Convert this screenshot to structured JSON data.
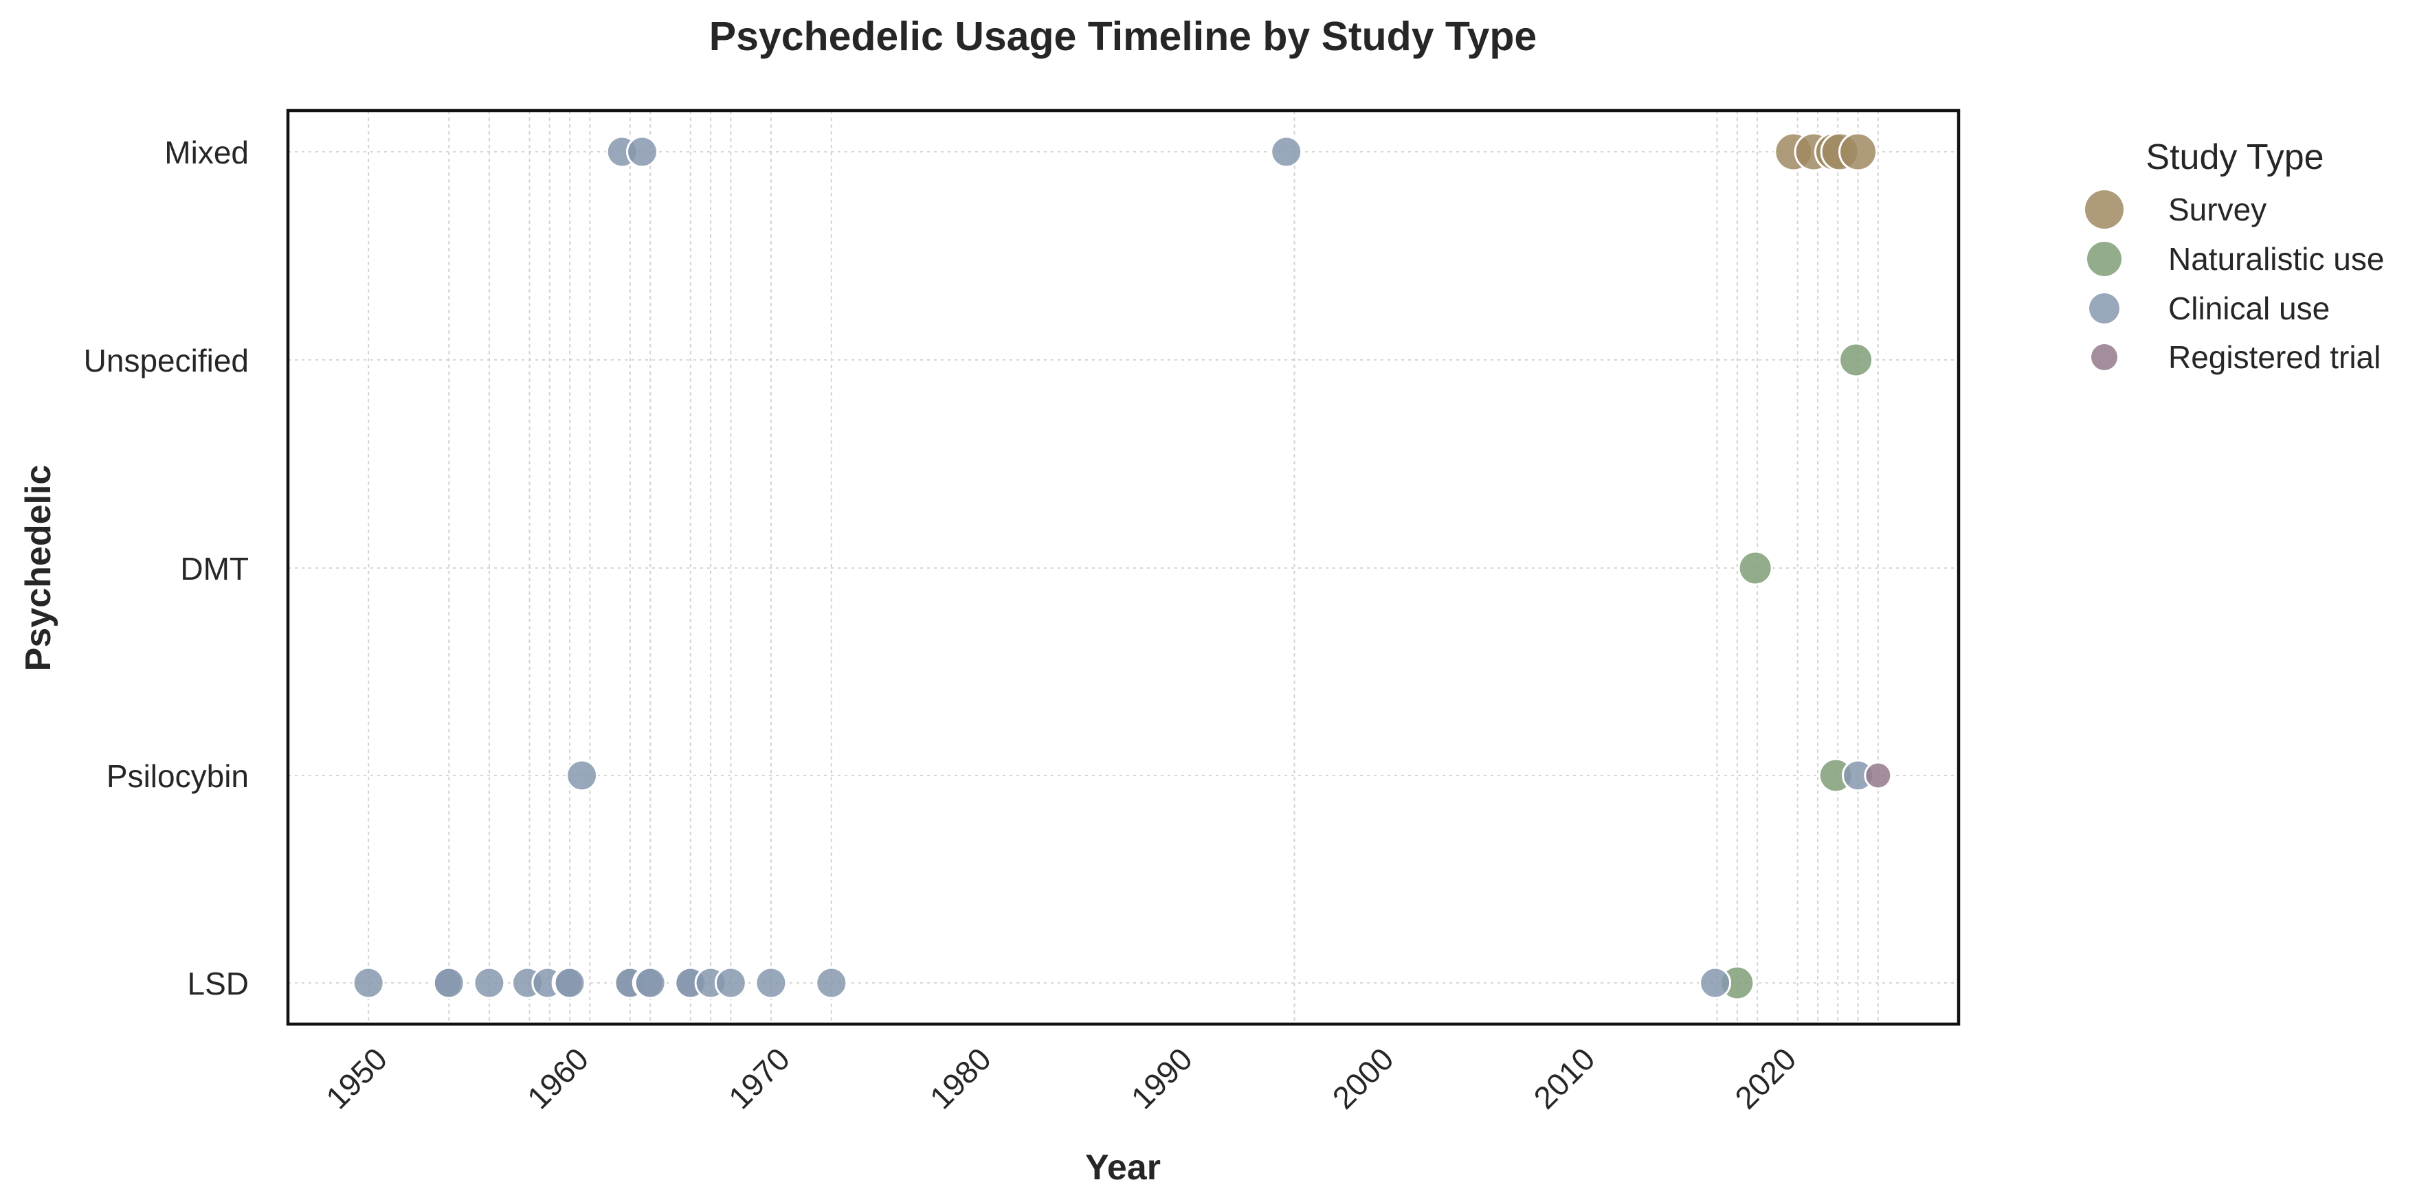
{
  "chart_data": {
    "type": "scatter",
    "title": "Psychedelic Usage Timeline by Study Type",
    "xlabel": "Year",
    "ylabel": "Psychedelic",
    "xlim": [
      1946,
      2029
    ],
    "x_ticks": [
      "1950",
      "1960",
      "1970",
      "1980",
      "1990",
      "2000",
      "2010",
      "2020"
    ],
    "categories": [
      "LSD",
      "Psilocybin",
      "DMT",
      "Unspecified",
      "Mixed"
    ],
    "grid": true,
    "legend": {
      "title": "Study Type",
      "placement": "outside-top-right",
      "entries": [
        "Survey",
        "Naturalistic use",
        "Clinical use",
        "Registered trial"
      ]
    },
    "series": [
      {
        "name": "Survey",
        "color": "#a08a62",
        "points": [
          {
            "x": 2020.8,
            "y": "Mixed"
          },
          {
            "x": 2021.8,
            "y": "Mixed"
          },
          {
            "x": 2022.8,
            "y": "Mixed"
          },
          {
            "x": 2023.1,
            "y": "Mixed"
          },
          {
            "x": 2024.0,
            "y": "Mixed"
          }
        ]
      },
      {
        "name": "Naturalistic use",
        "color": "#7f9e78",
        "points": [
          {
            "x": 2023.9,
            "y": "Unspecified"
          },
          {
            "x": 2018.9,
            "y": "DMT"
          },
          {
            "x": 2022.9,
            "y": "Psilocybin"
          },
          {
            "x": 2018.0,
            "y": "LSD"
          }
        ]
      },
      {
        "name": "Clinical use",
        "color": "#8698ae",
        "points": [
          {
            "x": 1962.6,
            "y": "Mixed"
          },
          {
            "x": 1963.6,
            "y": "Mixed"
          },
          {
            "x": 1995.6,
            "y": "Mixed"
          },
          {
            "x": 1960.6,
            "y": "Psilocybin"
          },
          {
            "x": 2024.0,
            "y": "Psilocybin"
          },
          {
            "x": 2016.9,
            "y": "LSD"
          },
          {
            "x": 1950.0,
            "y": "LSD"
          },
          {
            "x": 1953.9,
            "y": "LSD"
          },
          {
            "x": 1954.0,
            "y": "LSD"
          },
          {
            "x": 1956.0,
            "y": "LSD"
          },
          {
            "x": 1957.9,
            "y": "LSD"
          },
          {
            "x": 1958.9,
            "y": "LSD"
          },
          {
            "x": 1959.9,
            "y": "LSD"
          },
          {
            "x": 1960.0,
            "y": "LSD"
          },
          {
            "x": 1962.9,
            "y": "LSD"
          },
          {
            "x": 1963.0,
            "y": "LSD"
          },
          {
            "x": 1963.9,
            "y": "LSD"
          },
          {
            "x": 1964.0,
            "y": "LSD"
          },
          {
            "x": 1965.9,
            "y": "LSD"
          },
          {
            "x": 1966.0,
            "y": "LSD"
          },
          {
            "x": 1967.0,
            "y": "LSD"
          },
          {
            "x": 1968.0,
            "y": "LSD"
          },
          {
            "x": 1970.0,
            "y": "LSD"
          },
          {
            "x": 1973.0,
            "y": "LSD"
          }
        ]
      },
      {
        "name": "Registered trial",
        "color": "#937a8c",
        "points": [
          {
            "x": 2025.0,
            "y": "Psilocybin"
          }
        ]
      }
    ]
  }
}
